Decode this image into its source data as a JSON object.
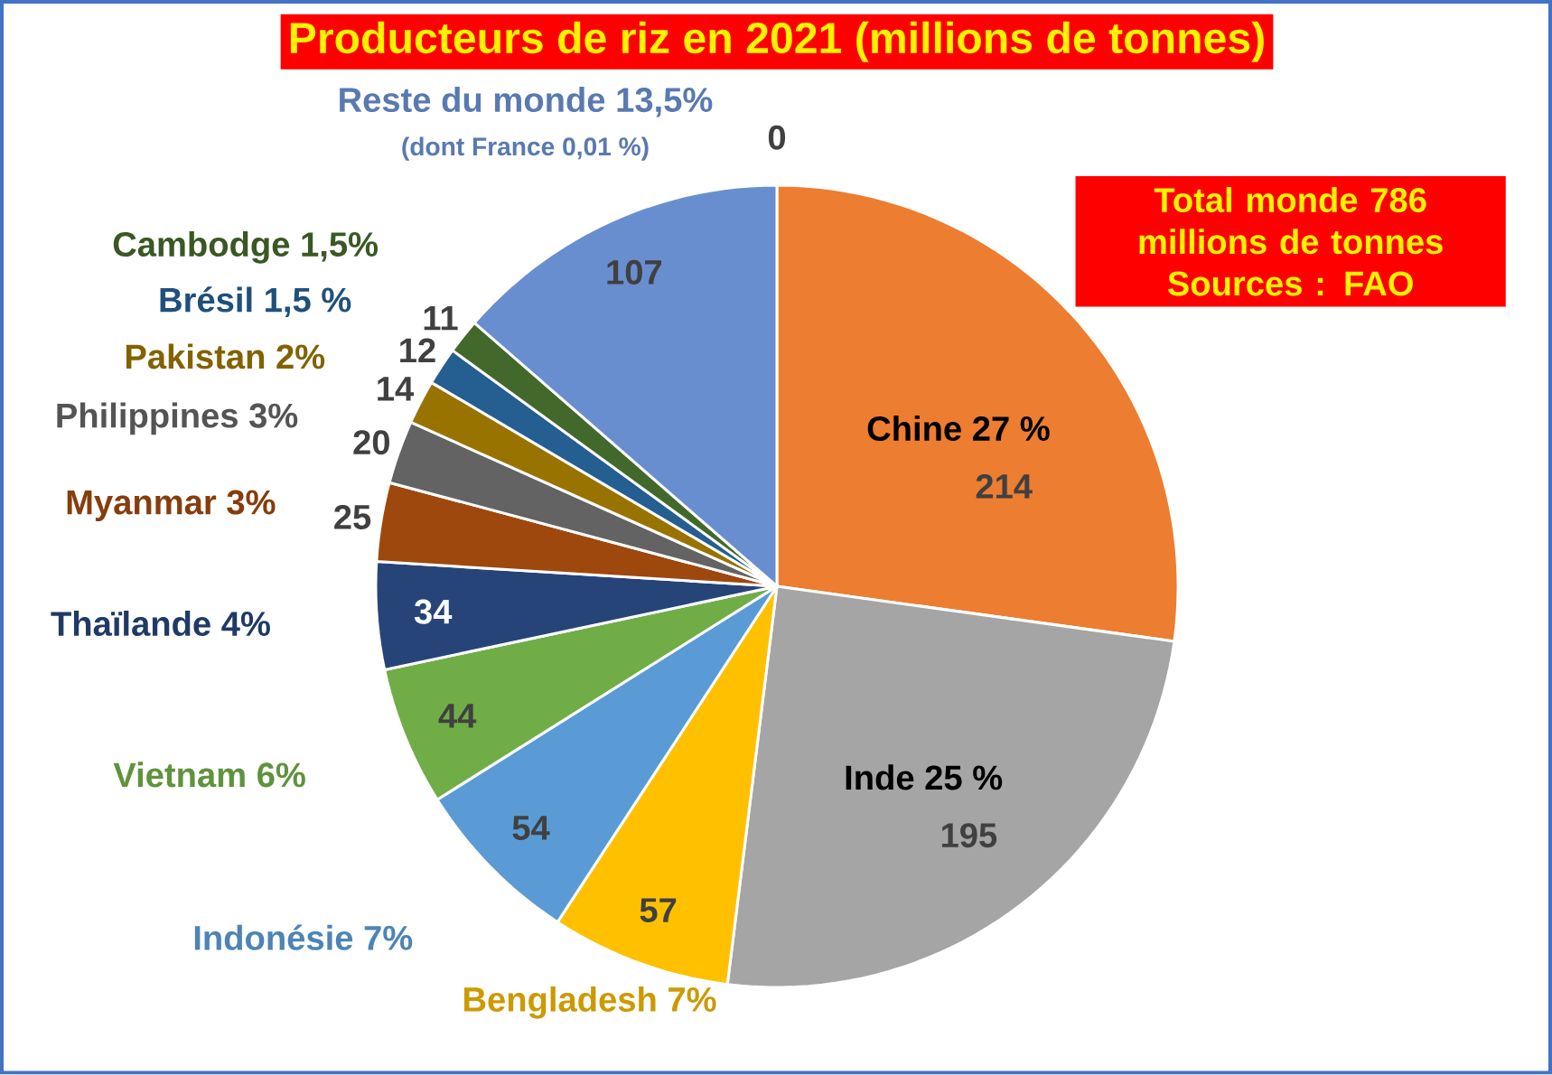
{
  "chart_data": {
    "type": "pie",
    "title": "Producteurs de riz en 2021 (millions de tonnes)",
    "categories": [
      "Chine 27 %",
      "Inde 25 %",
      "Bengladesh 7%",
      "Indonésie 7%",
      "Vietnam 6%",
      "Thaïlande 4%",
      "Myanmar 3%",
      "Philippines 3%",
      "Pakistan 2%",
      "Brésil 1,5 %",
      "Cambodge 1,5%",
      "Reste du monde 13,5%"
    ],
    "values": [
      214,
      195,
      57,
      54,
      44,
      34,
      25,
      20,
      14,
      12,
      11,
      107
    ],
    "colors": [
      "#ed7d31",
      "#a5a5a5",
      "#ffc000",
      "#5b9bd5",
      "#70ad47",
      "#264478",
      "#9e480e",
      "#636363",
      "#997300",
      "#255e91",
      "#43682b",
      "#698ed0"
    ],
    "data_labels": true,
    "annotations": [
      "Total monde 786 millions de tonnes Sources : FAO",
      "(dont France 0,01 %)",
      "0"
    ]
  }
}
